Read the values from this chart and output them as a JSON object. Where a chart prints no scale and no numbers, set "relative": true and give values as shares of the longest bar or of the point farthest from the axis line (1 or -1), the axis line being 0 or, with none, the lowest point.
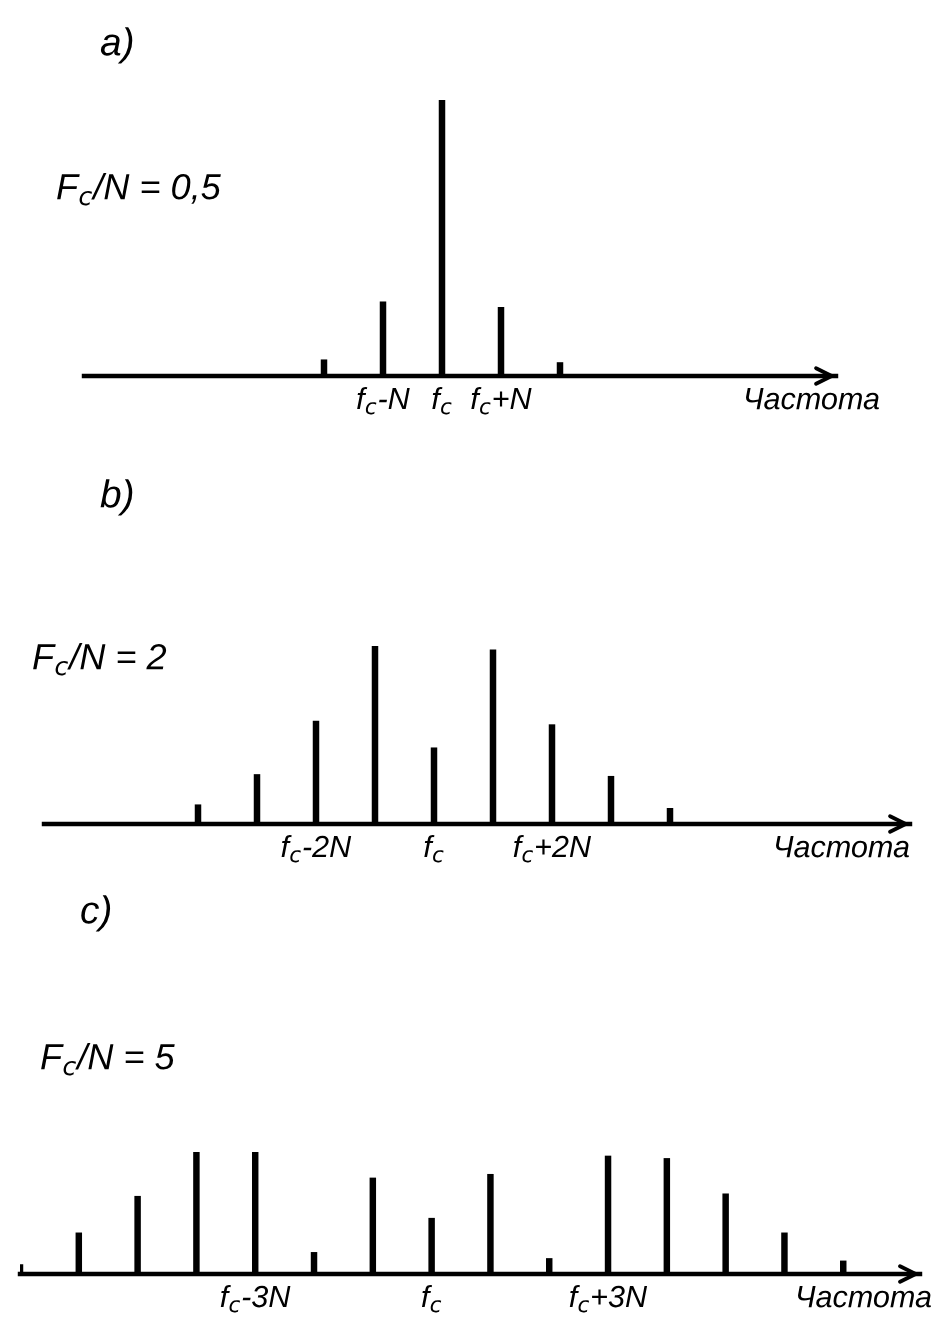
{
  "chart_data": [
    {
      "type": "bar",
      "title": "a)",
      "relative": true,
      "color": "#000000",
      "xlabel": "Частота",
      "annotations": [
        "F$_{c}$/N = 0,5"
      ],
      "categories": [
        null,
        "f$_{c}$-N",
        "f$_{c}$",
        "f$_{c}$+N",
        null
      ],
      "values": [
        0.06,
        0.27,
        1.0,
        0.25,
        0.05
      ]
    },
    {
      "type": "bar",
      "title": "b)",
      "relative": true,
      "color": "#000000",
      "xlabel": "Частота",
      "annotations": [
        "F$_{c}$/N = 2"
      ],
      "categories": [
        null,
        null,
        "f$_{c}$-2N",
        null,
        "f$_{c}$",
        null,
        "f$_{c}$+2N",
        null,
        null
      ],
      "values": [
        0.11,
        0.28,
        0.58,
        1.0,
        0.43,
        0.98,
        0.56,
        0.27,
        0.09
      ]
    },
    {
      "type": "bar",
      "title": "c)",
      "relative": true,
      "color": "#000000",
      "xlabel": "Частота",
      "annotations": [
        "F$_{c}$/N = 5"
      ],
      "categories": [
        null,
        null,
        null,
        null,
        "f$_{c}$-3N",
        null,
        null,
        "f$_{c}$",
        null,
        null,
        "f$_{c}$+3N",
        null,
        null,
        null,
        null
      ],
      "values": [
        0.08,
        0.34,
        0.64,
        1.0,
        1.0,
        0.18,
        0.79,
        0.46,
        0.82,
        0.13,
        0.97,
        0.95,
        0.66,
        0.34,
        0.11
      ]
    }
  ]
}
